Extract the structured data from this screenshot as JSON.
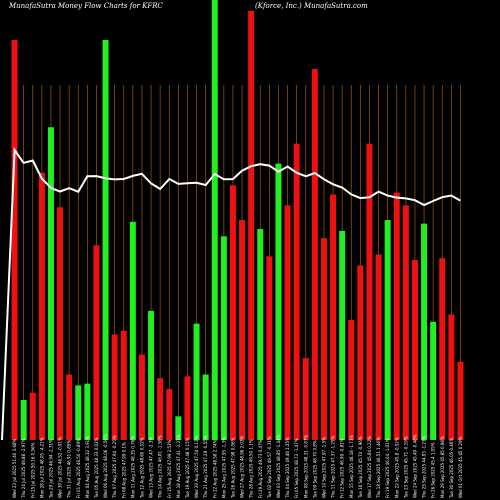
{
  "chart_data": {
    "type": "bar",
    "title_left": "MunafaSutra  Money Flow  Charts for KFRC",
    "title_right": "(Kforce, Inc.) MunafaSutra.com",
    "xlabel": "",
    "ylabel": "",
    "grid": true,
    "colors": {
      "background": "#000000",
      "positive": "#22ee22",
      "negative": "#ee1111",
      "line": "#ffffff",
      "grid": "#a05a14",
      "text": "#ffffff"
    },
    "categories": [
      "Wed 01 Oct 2025 45.45 0.29%",
      "Tue 30 Sep 2025 46.05 0.46%",
      "Mon 29 Sep 2025 45.85 0.98%",
      "Fri 26 Sep 2025 45.4 1.05%",
      "Thu 25 Sep 2025 44.93 -1.23%",
      "Wed 24 Sep 2025 45.49 -0.48%",
      "Tue 23 Sep 2025 45.71 -0.19%",
      "Mon 22 Sep 2025 45.8 -0.52%",
      "Fri 19 Sep 2025 46.04 -1.01%",
      "Thu 18 Sep 2025 46.51 1.46%",
      "Wed 17 Sep 2025 45.84 0.22%",
      "Tue 16 Sep 2025 45.74 -0.96%",
      "Mon 15 Sep 2025 46.18 -1.73%",
      "Fri 12 Sep 2025 46.99 -0.81%",
      "Thu 11 Sep 2025 47.37 -1.25%",
      "Wed 10 Sep 2025 47.97 -1.5%",
      "Tue 09 Sep 2025 48.70 0.8%",
      "Mon 08 Sep 2025 48.31 -0.87%",
      "Fri 05 Sep 2025 48.73 -1.47%",
      "Thu 04 Sep 2025 49.46 1.25%",
      "Wed 03 Sep 2025 48.85 -1.44%",
      "Tue 02 Sep 2025 49.57 -0.31%",
      "Fri 29 Aug 2025 49.73 0.47%",
      "Thu 28 Aug 2025 49.50 1.1%",
      "Wed 27 Aug 2025 48.96 2.03%",
      "Tue 26 Aug 2025 47.98 0.06%",
      "Mon 25 Aug 2025 47.95 -1.3%",
      "Fri 22 Aug 2025 48.58 2.74%",
      "Thu 21 Aug 2025 47.28 -0.55%",
      "Wed 20 Aug 2025 47.54 0.13%",
      "Tue 19 Aug 2025 47.48 0.15%",
      "Mon 18 Aug 2025 47.41 -1.21%",
      "Fri 15 Aug 2025 47.99 2.53%",
      "Thu 14 Aug 2025 46.81 -1.38%",
      "Wed 13 Aug 2025 47.47 -2.3%",
      "Tue 12 Aug 2025 48.60 0.52%",
      "Mon 11 Aug 2025 48.35 0.76%",
      "Fri 08 Aug 2025 47.99 0.1%",
      "Thu 07 Aug 2025 47.94 -0.25%",
      "Wed 06 Aug 2025 48.06 -0.56%",
      "Tue 05 Aug 2025 48.33 0.02%",
      "Mon 04 Aug 2025 48.32 3.91%",
      "Fri 01 Aug 2025 46.50 -0.89%",
      "Thu 31 Jul 2025 46.91 0.85%",
      "Wed 30 Jul 2025 46.52 -0.91%",
      "Tue 29 Jul 2025 46.94 -2.31%",
      "Mon 28 Jul 2025 48.05 -4.21%",
      "Fri 25 Jul 2025 50.16 0.56%",
      "Thu 24 Jul 2025 49.88 -2.97%",
      "Wed 23 Jul 2025 51.40 3.68%"
    ],
    "series": [
      {
        "values": [
          43,
          69,
          100,
          65,
          119,
          99,
          129,
          136,
          121,
          102,
          163,
          96,
          66,
          115,
          135,
          111,
          204,
          45,
          163,
          129,
          152,
          101,
          116,
          236,
          121,
          140,
          112,
          242,
          36,
          64,
          35,
          13,
          28,
          34,
          71,
          47,
          120,
          60,
          58,
          220,
          107,
          31,
          30,
          36,
          128,
          172,
          147,
          26,
          22,
          220
        ],
        "signs": [
          "neg",
          "neg",
          "neg",
          "pos",
          "pos",
          "neg",
          "neg",
          "neg",
          "pos",
          "neg",
          "neg",
          "neg",
          "neg",
          "pos",
          "neg",
          "neg",
          "neg",
          "neg",
          "neg",
          "neg",
          "pos",
          "neg",
          "pos",
          "neg",
          "neg",
          "neg",
          "pos",
          "pos",
          "pos",
          "pos",
          "neg",
          "pos",
          "neg",
          "neg",
          "pos",
          "neg",
          "pos",
          "neg",
          "neg",
          "pos",
          "neg",
          "pos",
          "pos",
          "neg",
          "neg",
          "pos",
          "neg",
          "neg",
          "pos",
          "neg"
        ]
      }
    ],
    "price_line": [
      45.45,
      46.05,
      45.85,
      45.4,
      44.93,
      45.49,
      45.71,
      45.8,
      46.04,
      46.51,
      45.84,
      45.74,
      46.18,
      46.99,
      47.37,
      47.97,
      48.7,
      48.31,
      48.73,
      49.46,
      48.85,
      49.57,
      49.73,
      49.5,
      48.96,
      47.98,
      47.95,
      48.58,
      47.28,
      47.54,
      47.48,
      47.41,
      47.99,
      46.81,
      47.47,
      48.6,
      48.35,
      47.99,
      47.94,
      48.06,
      48.33,
      48.32,
      46.5,
      46.91,
      46.52,
      46.94,
      48.05,
      50.16,
      49.88,
      51.4
    ]
  }
}
